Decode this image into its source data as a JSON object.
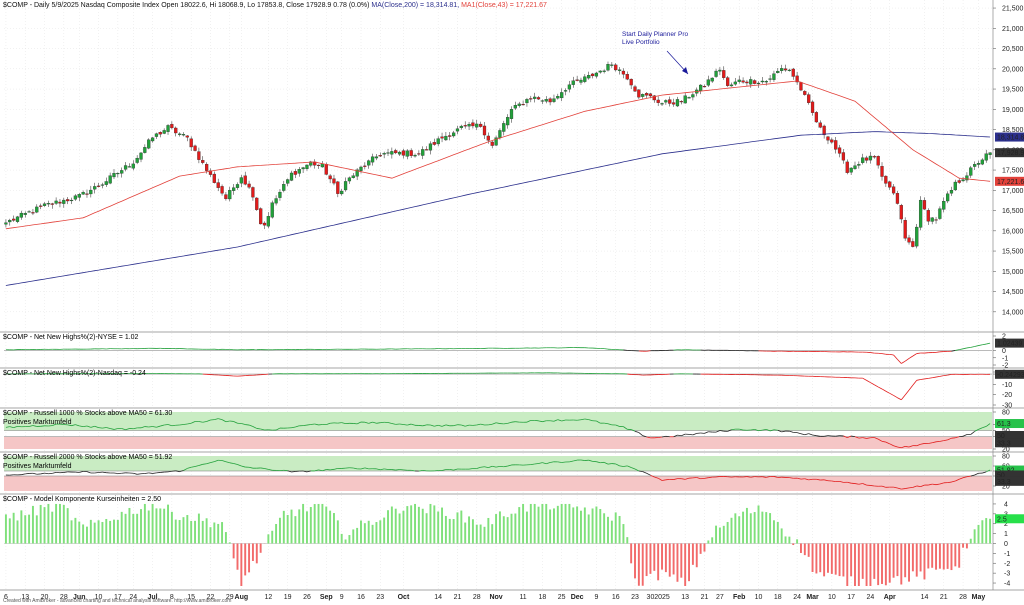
{
  "colors": {
    "up": "#21a03a",
    "down": "#e11b1b",
    "ma200": "#2b2f8c",
    "ma43": "#e2413a",
    "greenZone": "#c9ecc3",
    "redZone": "#f5c6c6",
    "grid": "#dcdcdc"
  },
  "header": {
    "main": "$COMP - Daily 5/9/2025 Nasdaq Composite Index Open 18022.6, Hi 18068.9, Lo 17853.8, Close 17928.9  0.78  (0.0%)",
    "ma200": "MA(Close,200) = 18,314.81,",
    "ma43": "MA1(Close,43) = 17,221.67",
    "annotation_line1": "Start Daily Planner Pro",
    "annotation_line2": "Live Portfolio",
    "p2": "$COMP - Net New Highs%(2)-NYSE = 1.02",
    "p3": "$COMP - Net New Highs%(2)-Nasdaq = -0.24",
    "p4": "$COMP - Russell 1000 % Stocks above MA50 = 61.30",
    "p4b": "Positives Marktumfeld",
    "p5": "$COMP - Russell 2000 % Stocks above MA50 = 51.92",
    "p5b": "Positives Marktumfeld",
    "p6": "$COMP - Model Komponente Kurseinheiten = 2.50",
    "footer": "Created with AmiBroker - advanced charting and technical analysis software. http://www.amibroker.com"
  },
  "chart_data": {
    "type": "candlestick",
    "x_start": "2024-05-06",
    "x_end": "2025-05-09",
    "n_bars": 256,
    "month_labels": [
      {
        "label": "6",
        "bar": 0
      },
      {
        "label": "13",
        "bar": 5
      },
      {
        "label": "20",
        "bar": 10
      },
      {
        "label": "28",
        "bar": 15
      },
      {
        "label": "Jun",
        "bar": 19
      },
      {
        "label": "10",
        "bar": 24
      },
      {
        "label": "17",
        "bar": 29
      },
      {
        "label": "24",
        "bar": 33
      },
      {
        "label": "Jul",
        "bar": 38
      },
      {
        "label": "8",
        "bar": 43
      },
      {
        "label": "15",
        "bar": 48
      },
      {
        "label": "22",
        "bar": 53
      },
      {
        "label": "29",
        "bar": 58
      },
      {
        "label": "Aug",
        "bar": 61
      },
      {
        "label": "12",
        "bar": 68
      },
      {
        "label": "19",
        "bar": 73
      },
      {
        "label": "26",
        "bar": 78
      },
      {
        "label": "Sep",
        "bar": 83
      },
      {
        "label": "9",
        "bar": 87
      },
      {
        "label": "16",
        "bar": 92
      },
      {
        "label": "23",
        "bar": 97
      },
      {
        "label": "Oct",
        "bar": 103
      },
      {
        "label": "14",
        "bar": 112
      },
      {
        "label": "21",
        "bar": 117
      },
      {
        "label": "28",
        "bar": 122
      },
      {
        "label": "Nov",
        "bar": 127
      },
      {
        "label": "11",
        "bar": 134
      },
      {
        "label": "18",
        "bar": 139
      },
      {
        "label": "25",
        "bar": 144
      },
      {
        "label": "Dec",
        "bar": 148
      },
      {
        "label": "9",
        "bar": 153
      },
      {
        "label": "16",
        "bar": 158
      },
      {
        "label": "23",
        "bar": 163
      },
      {
        "label": "30",
        "bar": 167
      },
      {
        "label": "2025",
        "bar": 170
      },
      {
        "label": "13",
        "bar": 176
      },
      {
        "label": "21",
        "bar": 181
      },
      {
        "label": "27",
        "bar": 185
      },
      {
        "label": "Feb",
        "bar": 190
      },
      {
        "label": "10",
        "bar": 195
      },
      {
        "label": "18",
        "bar": 200
      },
      {
        "label": "24",
        "bar": 205
      },
      {
        "label": "Mar",
        "bar": 209
      },
      {
        "label": "10",
        "bar": 214
      },
      {
        "label": "17",
        "bar": 219
      },
      {
        "label": "24",
        "bar": 224
      },
      {
        "label": "Apr",
        "bar": 229
      },
      {
        "label": "14",
        "bar": 238
      },
      {
        "label": "21",
        "bar": 243
      },
      {
        "label": "28",
        "bar": 248
      },
      {
        "label": "May",
        "bar": 252
      }
    ],
    "price_panel": {
      "ylim": [
        13600,
        21600
      ],
      "yticks": [
        14000,
        14500,
        15000,
        15500,
        16000,
        16500,
        17000,
        17500,
        18000,
        18500,
        19000,
        19500,
        20000,
        20500,
        21000,
        21500
      ],
      "ytick_labels": [
        "14,000",
        "14,500",
        "15,000",
        "15,500",
        "16,000",
        "16,500",
        "17,000",
        "17,500",
        "18,000",
        "18,500",
        "19,000",
        "19,500",
        "20,000",
        "20,500",
        "21,000",
        "21,500"
      ],
      "last_close": 17928.9,
      "badge_ma200": "18,314.81",
      "badge_close": "17,928.9",
      "badge_ma43": "17,221.67",
      "closes_anchor": [
        [
          0,
          16200
        ],
        [
          10,
          16620
        ],
        [
          19,
          16850
        ],
        [
          25,
          17170
        ],
        [
          33,
          17700
        ],
        [
          38,
          18300
        ],
        [
          42,
          18550
        ],
        [
          47,
          18280
        ],
        [
          52,
          17500
        ],
        [
          57,
          16800
        ],
        [
          61,
          17350
        ],
        [
          64,
          16900
        ],
        [
          66,
          16200
        ],
        [
          67,
          16150
        ],
        [
          69,
          16650
        ],
        [
          74,
          17400
        ],
        [
          79,
          17680
        ],
        [
          82,
          17590
        ],
        [
          85,
          17120
        ],
        [
          86,
          16900
        ],
        [
          88,
          17200
        ],
        [
          92,
          17550
        ],
        [
          97,
          17900
        ],
        [
          103,
          17920
        ],
        [
          107,
          17900
        ],
        [
          113,
          18300
        ],
        [
          118,
          18540
        ],
        [
          123,
          18600
        ],
        [
          126,
          18100
        ],
        [
          131,
          18980
        ],
        [
          136,
          19300
        ],
        [
          141,
          19200
        ],
        [
          146,
          19600
        ],
        [
          151,
          19800
        ],
        [
          155,
          20000
        ],
        [
          157,
          20120
        ],
        [
          161,
          19800
        ],
        [
          164,
          19350
        ],
        [
          167,
          19300
        ],
        [
          170,
          19150
        ],
        [
          175,
          19200
        ],
        [
          181,
          19600
        ],
        [
          185,
          20000
        ],
        [
          187,
          19550
        ],
        [
          190,
          19700
        ],
        [
          197,
          19700
        ],
        [
          201,
          20000
        ],
        [
          203,
          19980
        ],
        [
          206,
          19500
        ],
        [
          209,
          18900
        ],
        [
          211,
          18500
        ],
        [
          214,
          18200
        ],
        [
          218,
          17500
        ],
        [
          222,
          17750
        ],
        [
          225,
          17800
        ],
        [
          227,
          17300
        ],
        [
          229,
          17050
        ],
        [
          231,
          16700
        ],
        [
          233,
          15800
        ],
        [
          235,
          15600
        ],
        [
          237,
          16700
        ],
        [
          239,
          16300
        ],
        [
          241,
          16300
        ],
        [
          243,
          16700
        ],
        [
          246,
          17150
        ],
        [
          249,
          17400
        ],
        [
          252,
          17700
        ],
        [
          255,
          17929
        ]
      ],
      "ma200_anchor": [
        [
          0,
          14650
        ],
        [
          60,
          15600
        ],
        [
          120,
          16900
        ],
        [
          170,
          17900
        ],
        [
          206,
          18360
        ],
        [
          225,
          18450
        ],
        [
          240,
          18400
        ],
        [
          255,
          18315
        ]
      ],
      "ma43_anchor": [
        [
          0,
          16050
        ],
        [
          20,
          16320
        ],
        [
          45,
          17350
        ],
        [
          60,
          17580
        ],
        [
          80,
          17700
        ],
        [
          100,
          17300
        ],
        [
          125,
          18200
        ],
        [
          150,
          18950
        ],
        [
          170,
          19350
        ],
        [
          205,
          19700
        ],
        [
          220,
          19200
        ],
        [
          235,
          18000
        ],
        [
          247,
          17300
        ],
        [
          255,
          17222
        ]
      ]
    },
    "nnh_nyse": {
      "ylim": [
        -2,
        2
      ],
      "yticks": [
        2,
        0,
        -1,
        -2
      ],
      "last": 1.02,
      "badge": "1.02439",
      "anchor": [
        [
          0,
          0.1
        ],
        [
          40,
          0.3
        ],
        [
          60,
          0.1
        ],
        [
          100,
          0.2
        ],
        [
          150,
          0.4
        ],
        [
          165,
          -0.1
        ],
        [
          175,
          0.1
        ],
        [
          200,
          -0.1
        ],
        [
          222,
          -0.2
        ],
        [
          230,
          -0.6
        ],
        [
          232,
          -1.8
        ],
        [
          236,
          -0.4
        ],
        [
          245,
          -0.1
        ],
        [
          255,
          1.02
        ]
      ]
    },
    "nnh_nasdaq": {
      "ylim": [
        -30,
        2
      ],
      "yticks": [
        2,
        0,
        -10,
        -20,
        -30
      ],
      "last": -0.24,
      "badge": "-0.24293",
      "anchor": [
        [
          0,
          0.2
        ],
        [
          40,
          0.5
        ],
        [
          50,
          0.2
        ],
        [
          60,
          -2
        ],
        [
          70,
          0.3
        ],
        [
          100,
          0.4
        ],
        [
          140,
          1.2
        ],
        [
          160,
          0.2
        ],
        [
          165,
          -1
        ],
        [
          175,
          0.2
        ],
        [
          200,
          -1
        ],
        [
          222,
          -4
        ],
        [
          232,
          -25
        ],
        [
          236,
          -6
        ],
        [
          245,
          -0.3
        ],
        [
          255,
          -0.24
        ]
      ]
    },
    "r1000": {
      "ylim": [
        20,
        80
      ],
      "yticks": [
        80,
        60,
        50,
        40,
        20
      ],
      "last": 61.3,
      "badge_last": "61.3",
      "badge_mid": "50",
      "badge_low": "33.3",
      "anchor": [
        [
          0,
          55
        ],
        [
          15,
          60
        ],
        [
          30,
          52
        ],
        [
          45,
          60
        ],
        [
          55,
          68
        ],
        [
          60,
          62
        ],
        [
          68,
          50
        ],
        [
          80,
          60
        ],
        [
          95,
          63
        ],
        [
          110,
          58
        ],
        [
          120,
          58
        ],
        [
          135,
          65
        ],
        [
          150,
          68
        ],
        [
          160,
          55
        ],
        [
          167,
          38
        ],
        [
          175,
          42
        ],
        [
          190,
          52
        ],
        [
          200,
          50
        ],
        [
          210,
          42
        ],
        [
          225,
          38
        ],
        [
          232,
          22
        ],
        [
          240,
          30
        ],
        [
          250,
          45
        ],
        [
          255,
          61.3
        ]
      ]
    },
    "r2000": {
      "ylim": [
        10,
        80
      ],
      "yticks": [
        80,
        60,
        50,
        40,
        20
      ],
      "last": 51.92,
      "badge_last": "51.92",
      "badge_mid": "50",
      "badge_low": "33.3",
      "anchor": [
        [
          0,
          42
        ],
        [
          20,
          48
        ],
        [
          35,
          44
        ],
        [
          45,
          50
        ],
        [
          55,
          72
        ],
        [
          62,
          58
        ],
        [
          75,
          48
        ],
        [
          90,
          56
        ],
        [
          110,
          50
        ],
        [
          130,
          60
        ],
        [
          150,
          72
        ],
        [
          162,
          58
        ],
        [
          170,
          32
        ],
        [
          185,
          38
        ],
        [
          200,
          38
        ],
        [
          215,
          30
        ],
        [
          232,
          15
        ],
        [
          245,
          28
        ],
        [
          255,
          51.9
        ]
      ]
    },
    "model": {
      "ylim": [
        -4.3,
        4.5
      ],
      "yticks": [
        4,
        3,
        2,
        1,
        0,
        -1,
        -2,
        -3,
        -4
      ],
      "last": 2.5,
      "badge": "2.5",
      "anchor": [
        [
          0,
          2.5
        ],
        [
          14,
          4
        ],
        [
          20,
          1.5
        ],
        [
          30,
          3
        ],
        [
          38,
          4
        ],
        [
          44,
          3
        ],
        [
          56,
          2
        ],
        [
          61,
          -4
        ],
        [
          66,
          -1
        ],
        [
          72,
          3
        ],
        [
          82,
          4
        ],
        [
          88,
          1
        ],
        [
          96,
          2.5
        ],
        [
          104,
          4
        ],
        [
          116,
          3
        ],
        [
          124,
          2
        ],
        [
          132,
          3.5
        ],
        [
          140,
          4
        ],
        [
          150,
          3.5
        ],
        [
          160,
          2.5
        ],
        [
          163,
          -4
        ],
        [
          170,
          -3
        ],
        [
          176,
          -4.2
        ],
        [
          183,
          1
        ],
        [
          190,
          3
        ],
        [
          197,
          3.5
        ],
        [
          206,
          -0.5
        ],
        [
          210,
          -3
        ],
        [
          220,
          -4
        ],
        [
          232,
          -3.6
        ],
        [
          240,
          -3
        ],
        [
          247,
          -2
        ],
        [
          250,
          1
        ],
        [
          255,
          2.5
        ]
      ]
    }
  }
}
